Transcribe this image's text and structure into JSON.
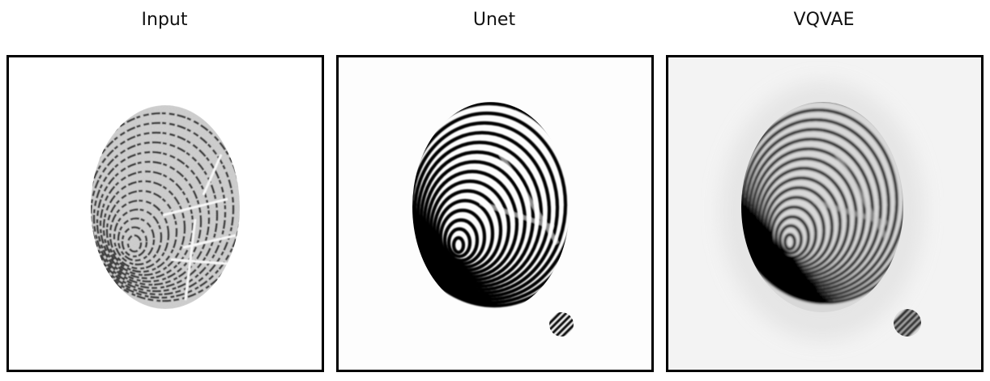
{
  "panels": [
    {
      "title": "Input",
      "image": "fingerprint-input-image",
      "background": "#ffffff",
      "ink": "#2a2a2a"
    },
    {
      "title": "Unet",
      "image": "fingerprint-unet-reconstruction",
      "background": "#fdfdfd",
      "ink": "#000000"
    },
    {
      "title": "VQVAE",
      "image": "fingerprint-vqvae-reconstruction",
      "background": "#f3f3f3",
      "ink": "#000000"
    }
  ]
}
